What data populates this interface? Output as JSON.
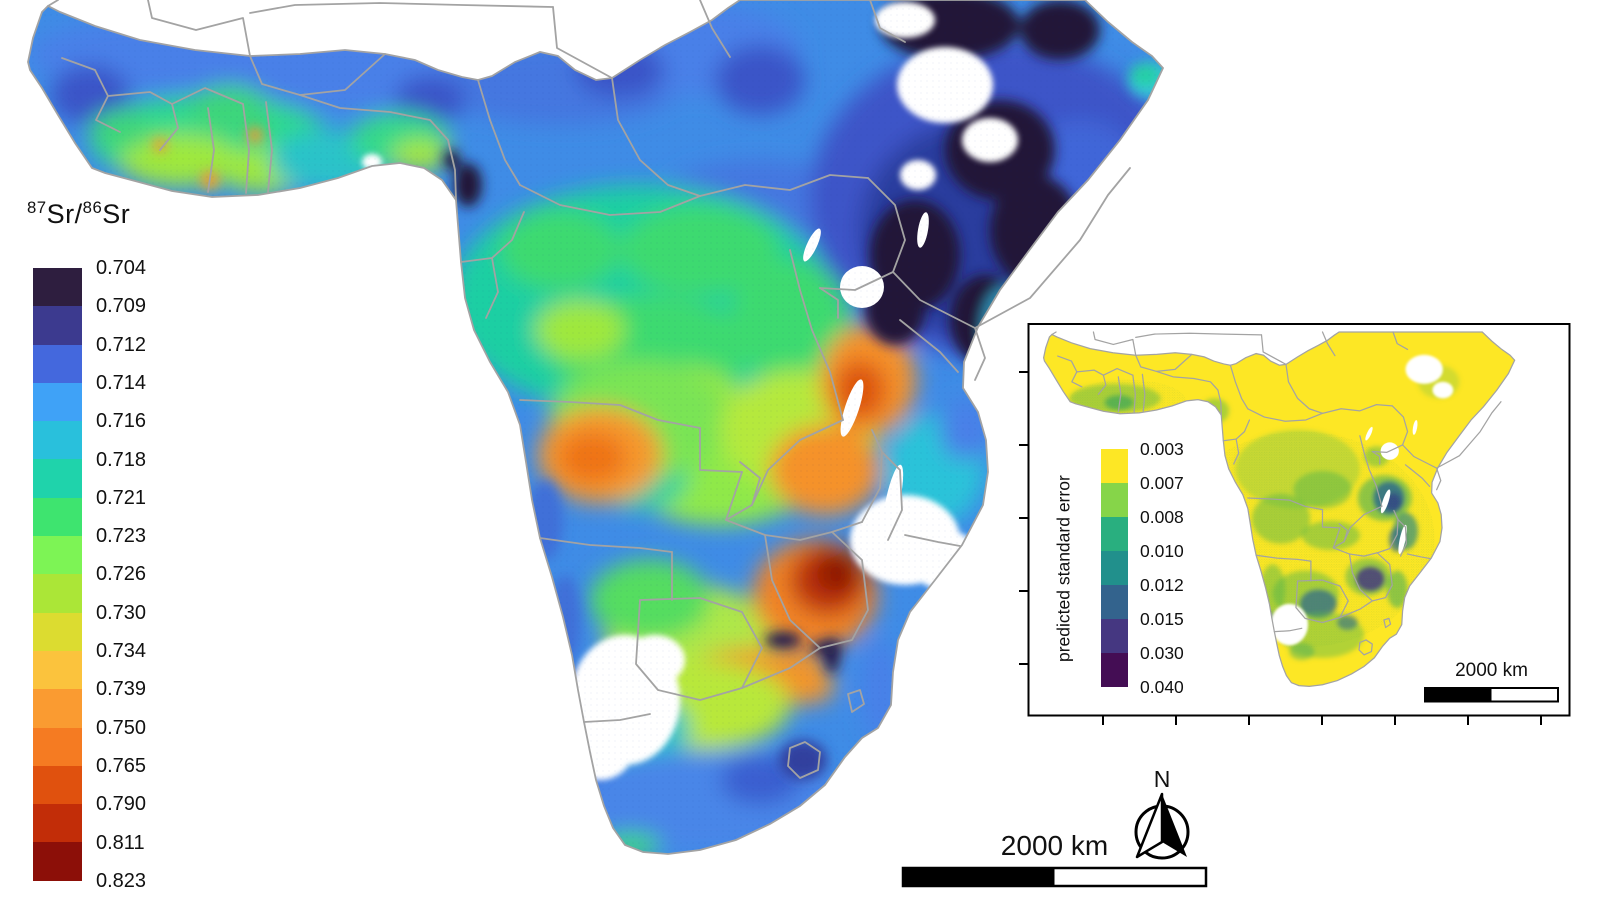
{
  "main_legend": {
    "title": {
      "sup1": "87",
      "base1": "Sr/",
      "sup2": "86",
      "base2": "Sr"
    },
    "labels": [
      "0.704",
      "0.709",
      "0.712",
      "0.714",
      "0.716",
      "0.718",
      "0.721",
      "0.723",
      "0.726",
      "0.730",
      "0.734",
      "0.739",
      "0.750",
      "0.765",
      "0.790",
      "0.811",
      "0.823"
    ],
    "colors": [
      "#2e1e3f",
      "#3c3a8f",
      "#4468dd",
      "#3fa2f7",
      "#29c0dc",
      "#1fd3ab",
      "#3ee46f",
      "#7df455",
      "#abe637",
      "#dcdc30",
      "#fbc33d",
      "#fa9b31",
      "#f57b22",
      "#e0510e",
      "#c22d08",
      "#8c0f08"
    ]
  },
  "inset": {
    "legend_title": "predicted standard error",
    "labels": [
      "0.003",
      "0.007",
      "0.008",
      "0.010",
      "0.012",
      "0.015",
      "0.030",
      "0.040"
    ],
    "colors": [
      "#fde725",
      "#86d549",
      "#29af7f",
      "#21908c",
      "#33638d",
      "#453781",
      "#440d54"
    ],
    "scale_label": "2000 km"
  },
  "main_map": {
    "scale_label": "2000 km",
    "north_label": "N",
    "border_color": "#a3a3a3",
    "frame_color": "#000000"
  }
}
